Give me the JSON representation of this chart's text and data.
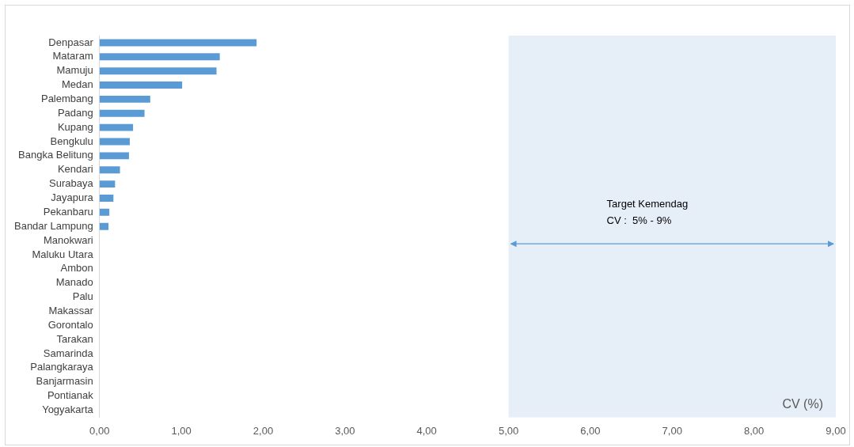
{
  "chart_data": {
    "type": "bar",
    "orientation": "horizontal",
    "xlabel": "CV (%)",
    "categories": [
      "Denpasar",
      "Mataram",
      "Mamuju",
      "Medan",
      "Palembang",
      "Padang",
      "Kupang",
      "Bengkulu",
      "Bangka Belitung",
      "Kendari",
      "Surabaya",
      "Jayapura",
      "Pekanbaru",
      "Bandar Lampung",
      "Manokwari",
      "Maluku Utara",
      "Ambon",
      "Manado",
      "Palu",
      "Makassar",
      "Gorontalo",
      "Tarakan",
      "Samarinda",
      "Palangkaraya",
      "Banjarmasin",
      "Pontianak",
      "Yogyakarta"
    ],
    "values": [
      1.92,
      1.47,
      1.43,
      1.01,
      0.62,
      0.55,
      0.41,
      0.37,
      0.36,
      0.25,
      0.19,
      0.17,
      0.12,
      0.11,
      0,
      0,
      0,
      0,
      0,
      0,
      0,
      0,
      0,
      0,
      0,
      0,
      0
    ],
    "color": "#5b9bd5",
    "xlim": [
      0,
      9
    ],
    "xticks": [
      {
        "value": 0,
        "label": "0,00"
      },
      {
        "value": 1,
        "label": "1,00"
      },
      {
        "value": 2,
        "label": "2,00"
      },
      {
        "value": 3,
        "label": "3,00"
      },
      {
        "value": 4,
        "label": "4,00"
      },
      {
        "value": 5,
        "label": "5,00"
      },
      {
        "value": 6,
        "label": "6,00"
      },
      {
        "value": 7,
        "label": "7,00"
      },
      {
        "value": 8,
        "label": "8,00"
      },
      {
        "value": 9,
        "label": "9,00"
      }
    ],
    "bands": [
      {
        "axis": "x",
        "from": 5,
        "to": 9,
        "label": "Target Kemendag\nCV :  5% - 9%",
        "color": "#e6eef8"
      }
    ],
    "grid": false,
    "legend": false
  }
}
